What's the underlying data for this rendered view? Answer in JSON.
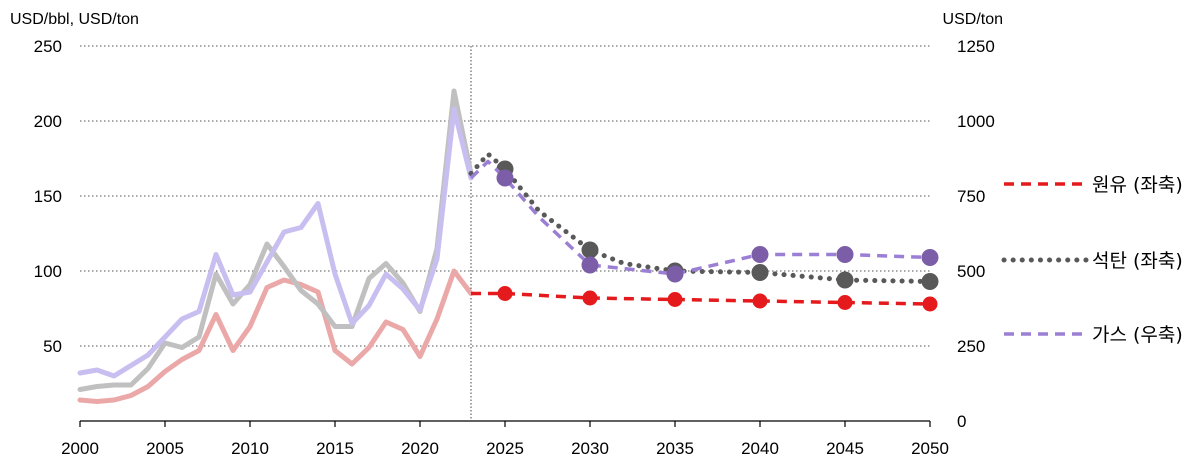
{
  "chart_data": {
    "type": "line",
    "y_left_label": "USD/bbl, USD/ton",
    "y_right_label": "USD/ton",
    "xlim": [
      2000,
      2050
    ],
    "ylim_left": [
      0,
      250
    ],
    "ylim_right": [
      0,
      1250
    ],
    "x_ticks": [
      "2000",
      "2005",
      "2010",
      "2015",
      "2020",
      "2025",
      "2030",
      "2035",
      "2040",
      "2045",
      "2050"
    ],
    "y_left_ticks": [
      "50",
      "100",
      "150",
      "200",
      "250"
    ],
    "y_right_ticks": [
      "0",
      "250",
      "500",
      "750",
      "1000",
      "1250"
    ],
    "forecast_start_year": 2023,
    "grid": "horizontal dotted",
    "legend_position": "right",
    "colors": {
      "oil": "#e41a1c",
      "oil_hist": "#eba8a8",
      "coal": "#595959",
      "coal_hist": "#c0c0c0",
      "gas": "#9b7fd4",
      "gas_hist": "#c8bff0",
      "gas_marker": "#7b5ea7"
    },
    "series": [
      {
        "name": "원유 (좌축)",
        "axis": "left",
        "historical": {
          "x": [
            2000,
            2001,
            2002,
            2003,
            2004,
            2005,
            2006,
            2007,
            2008,
            2009,
            2010,
            2011,
            2012,
            2013,
            2014,
            2015,
            2016,
            2017,
            2018,
            2019,
            2020,
            2021,
            2022,
            2023
          ],
          "y": [
            14,
            13,
            14,
            17,
            23,
            33,
            41,
            47,
            71,
            47,
            63,
            89,
            94,
            91,
            86,
            47,
            38,
            49,
            66,
            61,
            43,
            68,
            100,
            85
          ]
        },
        "forecast": {
          "x": [
            2023,
            2025,
            2030,
            2035,
            2040,
            2045,
            2050
          ],
          "y": [
            85,
            85,
            82,
            81,
            80,
            79,
            78
          ]
        },
        "markers_x": [
          2025,
          2030,
          2035,
          2040,
          2045,
          2050
        ]
      },
      {
        "name": "석탄 (좌축)",
        "axis": "left",
        "historical": {
          "x": [
            2000,
            2001,
            2002,
            2003,
            2004,
            2005,
            2006,
            2007,
            2008,
            2009,
            2010,
            2011,
            2012,
            2013,
            2014,
            2015,
            2016,
            2017,
            2018,
            2019,
            2020,
            2021,
            2022,
            2023
          ],
          "y": [
            21,
            23,
            24,
            24,
            35,
            52,
            49,
            56,
            98,
            78,
            91,
            118,
            103,
            87,
            78,
            63,
            63,
            95,
            105,
            92,
            73,
            115,
            220,
            165
          ]
        },
        "forecast": {
          "x": [
            2023,
            2024,
            2025,
            2027,
            2030,
            2032,
            2035,
            2040,
            2045,
            2050
          ],
          "y": [
            165,
            178,
            168,
            140,
            114,
            105,
            100,
            99,
            94,
            93
          ]
        },
        "markers_x": [
          2025,
          2030,
          2035,
          2040,
          2045,
          2050
        ]
      },
      {
        "name": "가스 (우축)",
        "axis": "right",
        "historical": {
          "x": [
            2000,
            2001,
            2002,
            2003,
            2004,
            2005,
            2006,
            2007,
            2008,
            2009,
            2010,
            2011,
            2012,
            2013,
            2014,
            2015,
            2016,
            2017,
            2018,
            2019,
            2020,
            2021,
            2022,
            2023
          ],
          "y": [
            160,
            170,
            150,
            185,
            220,
            280,
            340,
            365,
            555,
            420,
            430,
            530,
            630,
            645,
            725,
            490,
            325,
            385,
            490,
            440,
            370,
            540,
            1040,
            810
          ]
        },
        "forecast": {
          "x": [
            2023,
            2024,
            2025,
            2027,
            2030,
            2035,
            2040,
            2045,
            2050
          ],
          "y": [
            810,
            865,
            810,
            680,
            520,
            490,
            555,
            555,
            545
          ]
        },
        "markers_x": [
          2025,
          2030,
          2035,
          2040,
          2045,
          2050
        ]
      }
    ]
  }
}
